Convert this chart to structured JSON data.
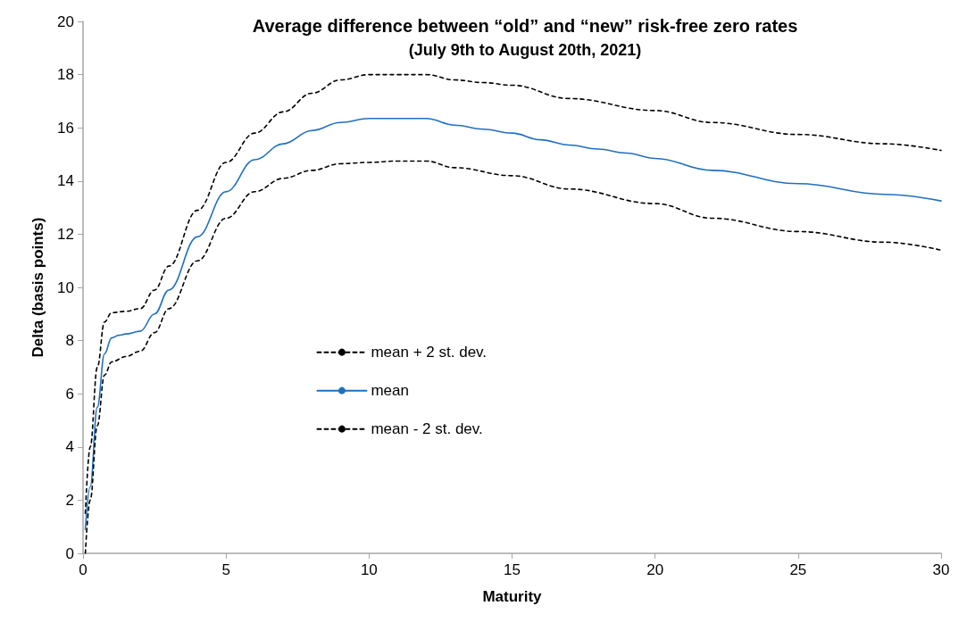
{
  "chart_data": {
    "type": "line",
    "title": "Average difference between “old” and “new” risk-free zero rates",
    "subtitle": "(July 9th to August 20th, 2021)",
    "xlabel": "Maturity",
    "ylabel": "Delta (basis points)",
    "xlim": [
      0,
      30
    ],
    "xticks": [
      0,
      5,
      10,
      15,
      20,
      25,
      30
    ],
    "ylim": [
      0,
      20
    ],
    "yticks": [
      0,
      2,
      4,
      6,
      8,
      10,
      12,
      14,
      16,
      18,
      20
    ],
    "grid": false,
    "legend": "left",
    "marker": "none",
    "series": [
      {
        "name": "mean + 2 st. dev.",
        "color": "#000000",
        "line_style": "dashed",
        "x": [
          0.08,
          0.25,
          0.5,
          0.75,
          1,
          1.5,
          2,
          2.5,
          3,
          4,
          5,
          6,
          7,
          8,
          9,
          10,
          11,
          12,
          13,
          14,
          15,
          17,
          20,
          22,
          25,
          28,
          30
        ],
        "values": [
          1.5,
          4,
          7,
          8.7,
          9.05,
          9.1,
          9.2,
          9.9,
          10.8,
          12.9,
          14.7,
          15.8,
          16.6,
          17.3,
          17.8,
          18.0,
          18.0,
          18.0,
          17.8,
          17.7,
          17.6,
          17.1,
          16.65,
          16.2,
          15.75,
          15.4,
          15.15
        ]
      },
      {
        "name": "mean",
        "color": "#1f6fc0",
        "line_style": "solid",
        "x": [
          0.08,
          0.25,
          0.5,
          0.75,
          1,
          1.25,
          1.5,
          2,
          2.5,
          3,
          4,
          5,
          6,
          7,
          8,
          9,
          10,
          11,
          12,
          13,
          14,
          15,
          16,
          17,
          18,
          19,
          20,
          22,
          25,
          28,
          30
        ],
        "values": [
          0.9,
          2.5,
          5.5,
          7.5,
          8.1,
          8.2,
          8.25,
          8.35,
          9.0,
          9.9,
          11.9,
          13.6,
          14.8,
          15.4,
          15.9,
          16.2,
          16.35,
          16.35,
          16.35,
          16.1,
          15.95,
          15.8,
          15.55,
          15.35,
          15.2,
          15.05,
          14.85,
          14.4,
          13.9,
          13.5,
          13.25
        ]
      },
      {
        "name": "mean - 2 st. dev.",
        "color": "#000000",
        "line_style": "dashed",
        "x": [
          0.08,
          0.25,
          0.5,
          0.75,
          1,
          1.5,
          2,
          2.5,
          3,
          4,
          5,
          6,
          7,
          8,
          9,
          10,
          11,
          12,
          13,
          15,
          17,
          20,
          22,
          25,
          28,
          30
        ],
        "values": [
          0,
          2,
          4.8,
          6.7,
          7.2,
          7.4,
          7.6,
          8.3,
          9.2,
          11.0,
          12.6,
          13.6,
          14.1,
          14.4,
          14.65,
          14.7,
          14.75,
          14.75,
          14.5,
          14.2,
          13.7,
          13.15,
          12.6,
          12.1,
          11.7,
          11.4
        ]
      }
    ]
  }
}
